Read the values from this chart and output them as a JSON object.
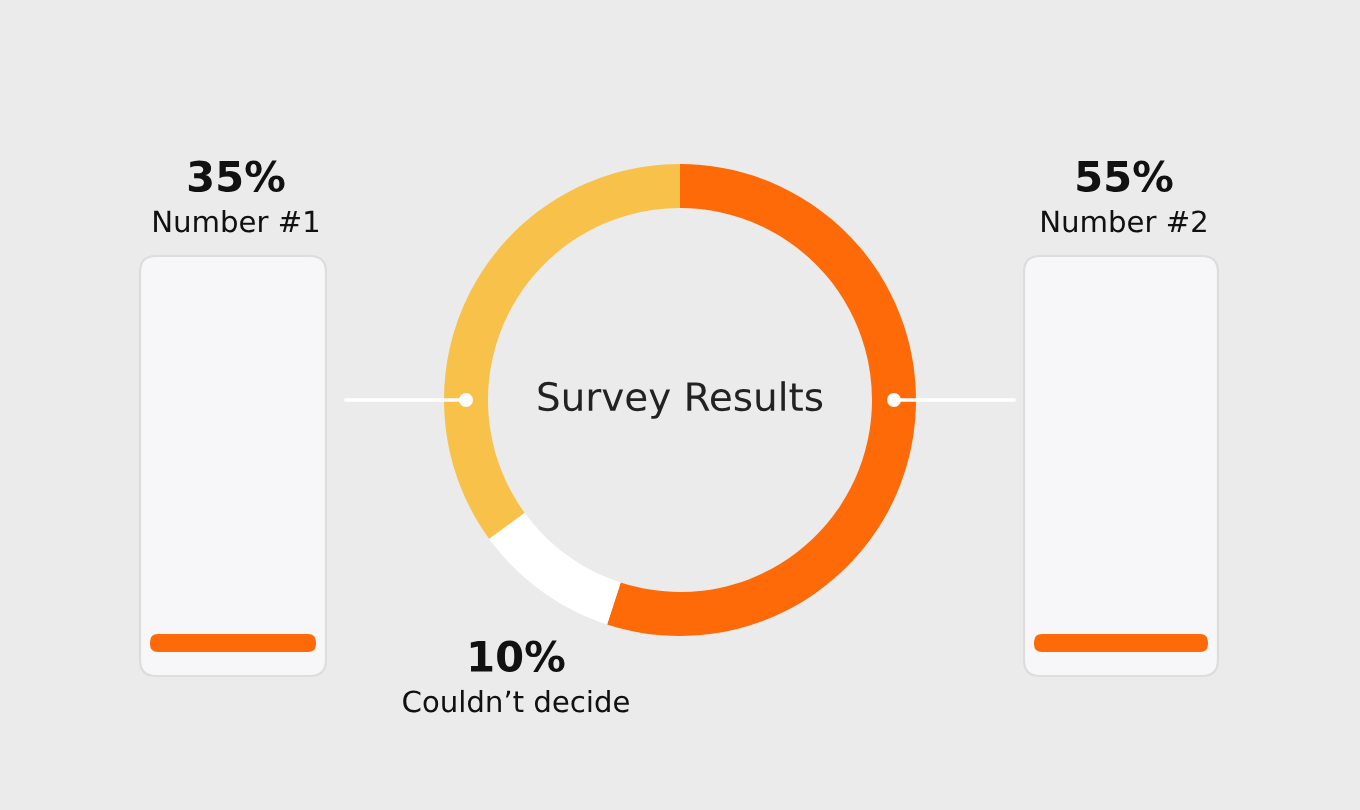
{
  "chart_data": {
    "type": "donut",
    "title": "Survey Results",
    "categories": [
      "Number #2",
      "Couldn’t decide",
      "Number #1"
    ],
    "values": [
      55,
      10,
      35
    ],
    "value_labels": [
      "55%",
      "10%",
      "35%"
    ],
    "colors": [
      "#ff6a08",
      "#ffffff",
      "#f8c24a"
    ]
  }
}
